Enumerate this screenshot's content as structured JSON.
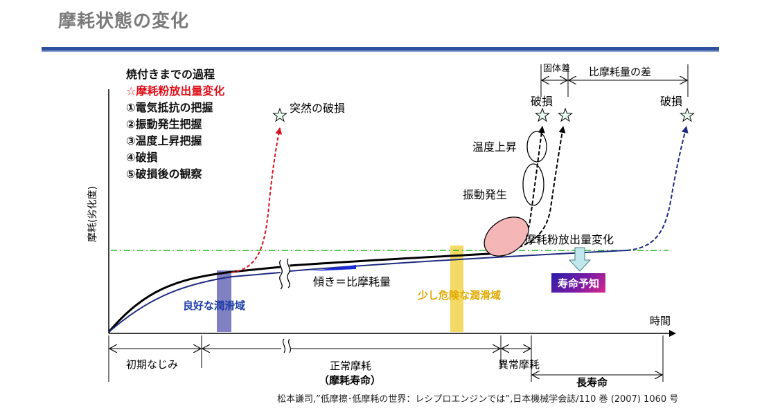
{
  "header": {
    "title": "摩耗状態の変化"
  },
  "steps": {
    "heading": "焼付きまでの過程",
    "highlight": "☆摩耗粉放出量変化",
    "items": [
      "①電気抵抗の把握",
      "②振動発生把握",
      "③温度上昇把握",
      "④破損",
      "⑤破損後の観察"
    ]
  },
  "diagram": {
    "axis": {
      "ylabel": "摩耗(劣化度)",
      "xlabel": "時間"
    },
    "labels": {
      "sudden_failure": "突然の破損",
      "failure_1": "破損",
      "failure_2": "破損",
      "individual_diff": "固体差",
      "wear_rate_diff": "比摩耗量の差",
      "temp_rise": "温度上昇",
      "vibration": "振動発生",
      "wear_powder_change": "摩耗粉放出量変化",
      "slope": "傾き＝比摩耗量",
      "good_lubrication": "良好な潤滑域",
      "risky_lubrication": "少し危険な潤滑域",
      "life_prediction": "寿命予知"
    },
    "phases": {
      "initial": "初期なじみ",
      "normal": "正常摩耗",
      "normal_sub": "（摩耗寿命）",
      "abnormal": "異常摩耗",
      "long_life": "長寿命"
    },
    "colors": {
      "black_curve": "#000000",
      "navy_curve": "#1e2a80",
      "failure_red": "#e01020",
      "threshold_green": "#22bb22",
      "good_zone": "#6a6ab8",
      "risky_zone": "#f2d24a",
      "powder_ellipse": "#f4b6b6"
    }
  },
  "citation": "松本謙司,”低摩擦･低摩耗の世界：レシプロエンジンでは”,日本機械学会誌/110 巻 (2007) 1060 号"
}
